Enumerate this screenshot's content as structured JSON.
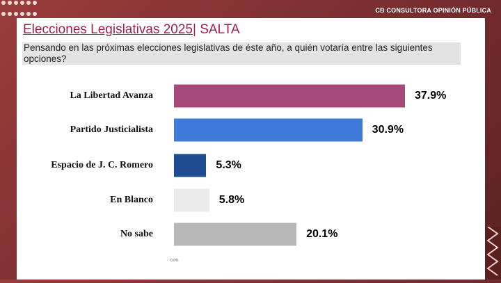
{
  "header": {
    "brand": "CB CONSULTORA OPINIÓN PÚBLICA"
  },
  "title": {
    "main": "Elecciones Legislativas 2025",
    "suffix": "| SALTA"
  },
  "question": "Pensando en las próximas elecciones legislativas de éste año, a quién votaría entre las siguientes opciones?",
  "chart_data": {
    "type": "bar",
    "orientation": "horizontal",
    "categories": [
      "La Libertad Avanza",
      "Partido Justicialista",
      "Espacio de J. C. Romero",
      "En Blanco",
      "No sabe"
    ],
    "values": [
      37.9,
      30.9,
      5.3,
      5.8,
      20.1
    ],
    "value_labels": [
      "37.9%",
      "30.9%",
      "5.3%",
      "5.8%",
      "20.1%"
    ],
    "colors": [
      "#a64b79",
      "#3f7ad8",
      "#1e4a90",
      "#ebebeb",
      "#b8b8b8"
    ],
    "axis_tick": "0.0%",
    "grid": false
  }
}
